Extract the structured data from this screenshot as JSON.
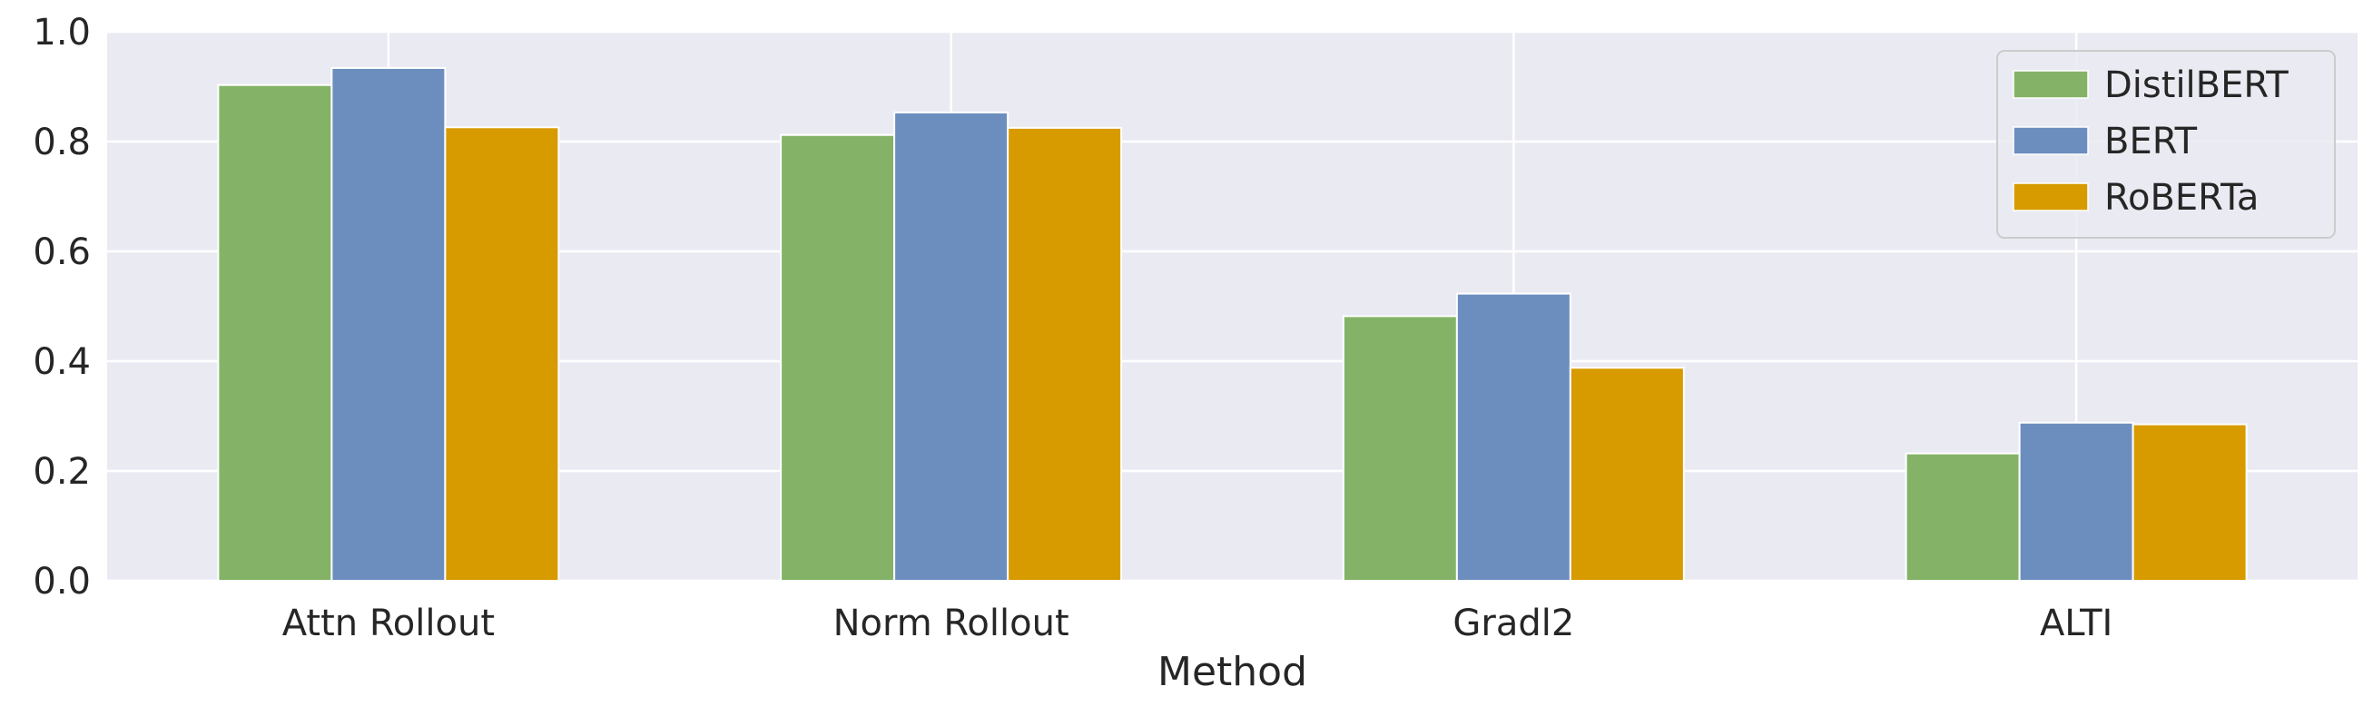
{
  "chart_data": {
    "type": "bar",
    "title": "",
    "xlabel": "Method",
    "ylabel": "",
    "categories": [
      "Attn Rollout",
      "Norm Rollout",
      "Gradl2",
      "ALTI"
    ],
    "series": [
      {
        "name": "DistilBERT",
        "color": "#84b368",
        "values": [
          0.903,
          0.812,
          0.482,
          0.232
        ]
      },
      {
        "name": "BERT",
        "color": "#6c8ebf",
        "values": [
          0.934,
          0.853,
          0.523,
          0.288
        ]
      },
      {
        "name": "RoBERTa",
        "color": "#d79b00",
        "values": [
          0.826,
          0.825,
          0.388,
          0.285
        ]
      }
    ],
    "ylim": [
      0.0,
      1.0
    ],
    "yticks": [
      "0.0",
      "0.2",
      "0.4",
      "0.6",
      "0.8",
      "1.0"
    ],
    "grid": true,
    "legend_position": "top-right",
    "style": {
      "plot_background": "#eaeaf2",
      "grid_color": "#ffffff",
      "text_color": "#262626"
    }
  }
}
